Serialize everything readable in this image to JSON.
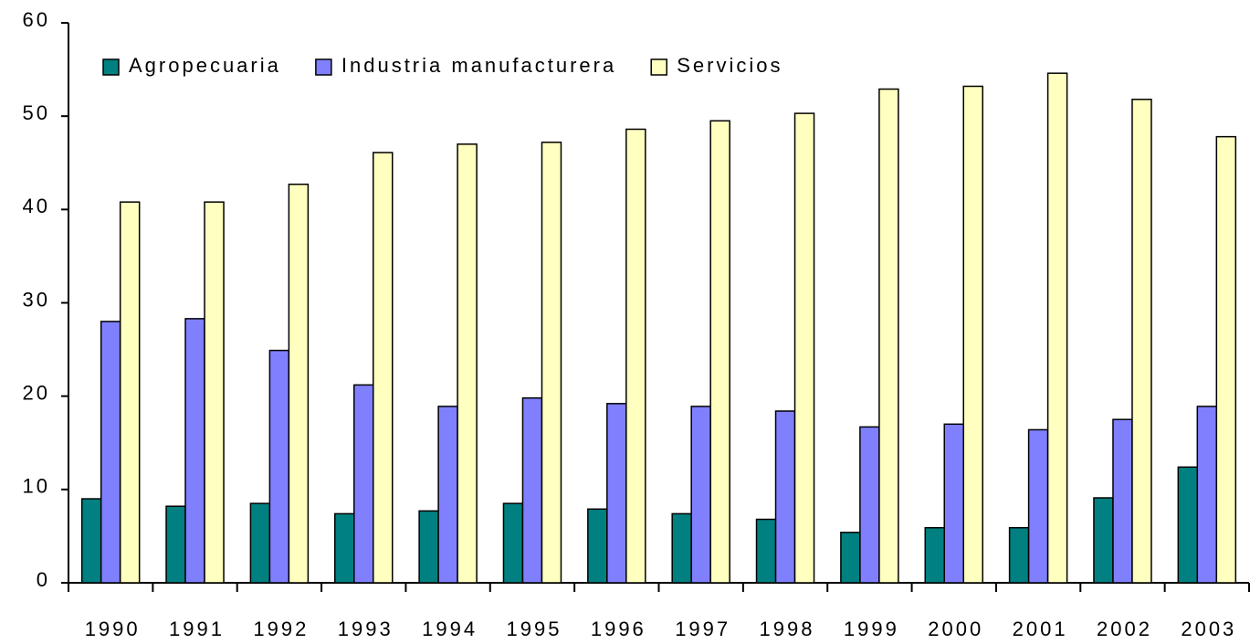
{
  "chart_data": {
    "type": "bar",
    "categories": [
      "1990",
      "1991",
      "1992",
      "1993",
      "1994",
      "1995",
      "1996",
      "1997",
      "1998",
      "1999",
      "2000",
      "2001",
      "2002",
      "2003"
    ],
    "series": [
      {
        "name": "Agropecuaria",
        "color": "#008080",
        "values": [
          9.0,
          8.2,
          8.5,
          7.4,
          7.7,
          8.5,
          7.9,
          7.4,
          6.8,
          5.4,
          5.9,
          5.9,
          9.1,
          12.4
        ]
      },
      {
        "name": "Industria manufacturera",
        "color": "#8080ff",
        "values": [
          28.0,
          28.3,
          24.9,
          21.2,
          18.9,
          19.8,
          19.2,
          18.9,
          18.4,
          16.7,
          17.0,
          16.4,
          17.5,
          18.9
        ]
      },
      {
        "name": "Servicios",
        "color": "#ffffc0",
        "values": [
          40.8,
          40.8,
          42.7,
          46.1,
          47.0,
          47.2,
          48.6,
          49.5,
          50.3,
          52.9,
          53.2,
          54.6,
          51.8,
          47.8
        ]
      }
    ],
    "ylim": [
      0,
      60
    ],
    "yticks": [
      0,
      10,
      20,
      30,
      40,
      50,
      60
    ],
    "legend": "top-left",
    "grid": false
  }
}
